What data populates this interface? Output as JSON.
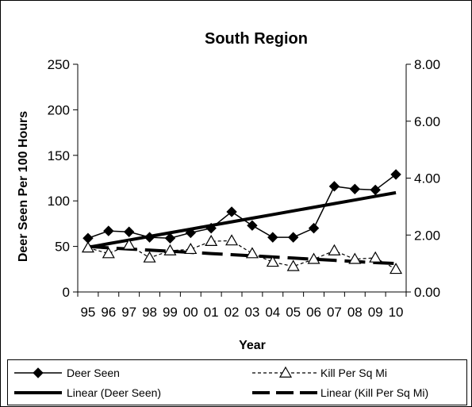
{
  "chart_data": {
    "type": "line",
    "title": "South Region",
    "xlabel": "Year",
    "ylabel": "Deer Seen Per 100 Hours",
    "categories": [
      "95",
      "96",
      "97",
      "98",
      "99",
      "00",
      "01",
      "02",
      "03",
      "04",
      "05",
      "06",
      "07",
      "08",
      "09",
      "10"
    ],
    "ylim": [
      0,
      250
    ],
    "y_ticks": [
      "0",
      "50",
      "100",
      "150",
      "200",
      "250"
    ],
    "y2lim": [
      0,
      8
    ],
    "y2_ticks": [
      "0.00",
      "2.00",
      "4.00",
      "6.00",
      "8.00"
    ],
    "grid": false,
    "legend_position": "bottom",
    "series": [
      {
        "name": "Deer Seen",
        "axis": "left",
        "style": "solid line, filled diamond markers",
        "color": "#000000",
        "values": [
          59,
          67,
          66,
          60,
          59,
          65,
          70,
          88,
          73,
          60,
          60,
          70,
          116,
          113,
          112,
          129
        ]
      },
      {
        "name": "Kill Per Sq Mi",
        "axis": "right",
        "style": "dashed line, open triangle markers",
        "color": "#000000",
        "values": [
          1.55,
          1.35,
          1.65,
          1.2,
          1.45,
          1.5,
          1.78,
          1.8,
          1.35,
          1.05,
          0.9,
          1.15,
          1.45,
          1.15,
          1.2,
          0.8
        ]
      },
      {
        "name": "Linear (Deer Seen)",
        "axis": "left",
        "style": "thick solid trend line",
        "color": "#000000",
        "values": [
          49,
          53,
          57,
          61,
          65,
          69,
          73,
          77,
          81,
          85,
          89,
          93,
          97,
          101,
          105,
          109
        ]
      },
      {
        "name": "Linear (Kill Per Sq Mi)",
        "axis": "right",
        "style": "thick long-dash trend line",
        "color": "#000000",
        "values": [
          1.6,
          1.55,
          1.51,
          1.47,
          1.43,
          1.39,
          1.35,
          1.31,
          1.27,
          1.23,
          1.19,
          1.15,
          1.11,
          1.07,
          1.03,
          1.0
        ]
      }
    ]
  }
}
